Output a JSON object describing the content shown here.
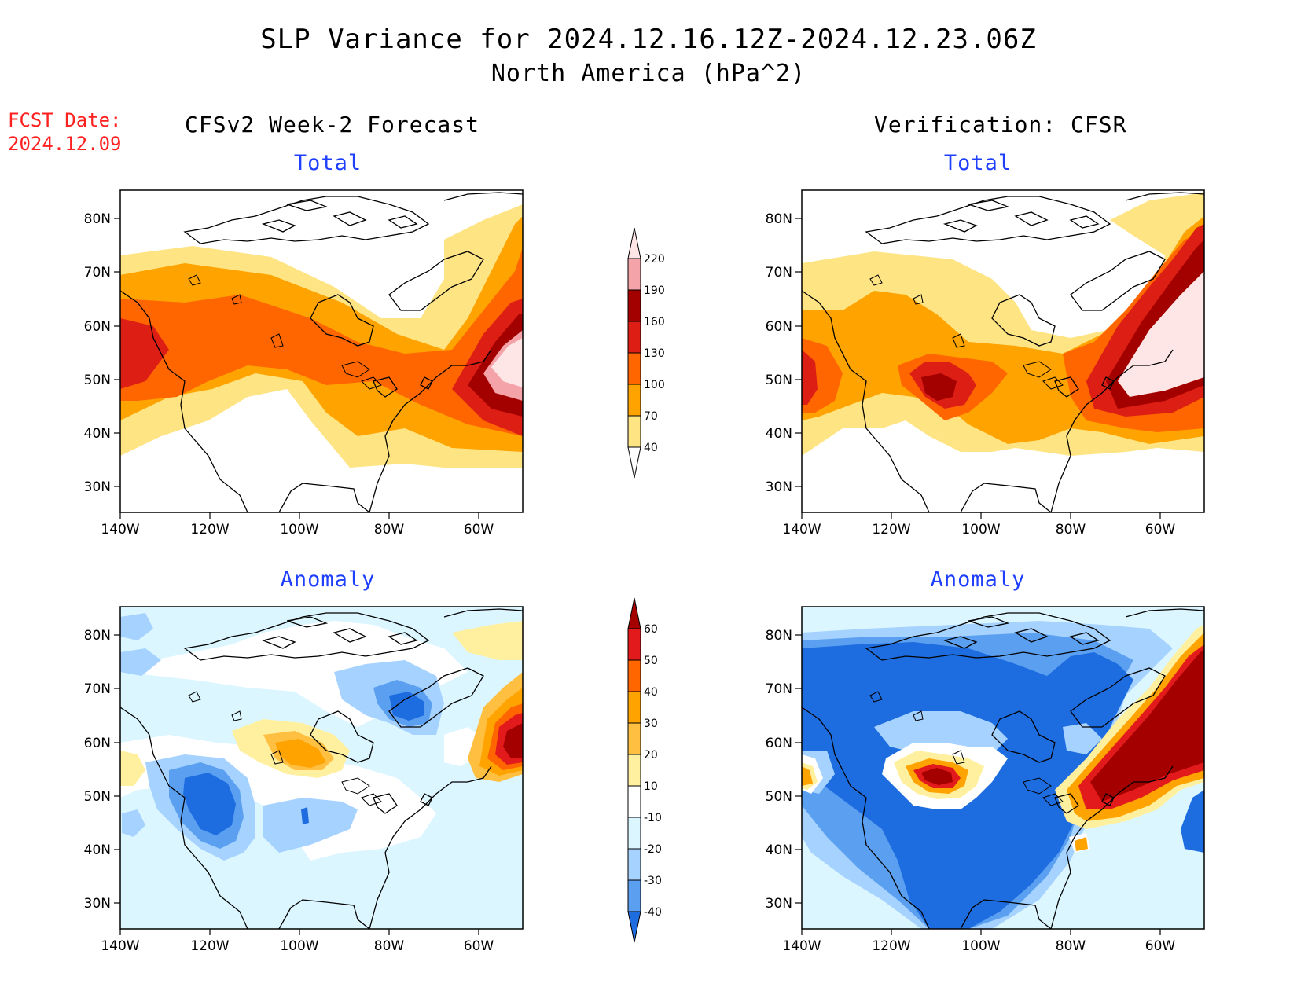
{
  "header": {
    "title": "SLP Variance for 2024.12.16.12Z-2024.12.23.06Z",
    "subtitle": "North America (hPa^2)"
  },
  "fcst": {
    "label": "FCST Date:",
    "date": "2024.12.09"
  },
  "columns": {
    "left": "CFSv2 Week-2 Forecast",
    "right": "Verification: CFSR"
  },
  "panels": {
    "fc_total": {
      "title": "Total"
    },
    "vf_total": {
      "title": "Total"
    },
    "fc_anom": {
      "title": "Anomaly"
    },
    "vf_anom": {
      "title": "Anomaly"
    }
  },
  "axes": {
    "lat_labels": [
      "80N",
      "70N",
      "60N",
      "50N",
      "40N",
      "30N"
    ],
    "lon_labels": [
      "140W",
      "120W",
      "100W",
      "80W",
      "60W"
    ]
  },
  "colorbars": {
    "total": {
      "labels": [
        "220",
        "190",
        "160",
        "130",
        "100",
        "70",
        "40"
      ],
      "colors": [
        "#ffe6e6",
        "#f4a3a8",
        "#a30000",
        "#dc1e14",
        "#ff6600",
        "#ffa300",
        "#fee483",
        "#ffffff"
      ]
    },
    "anomaly": {
      "labels": [
        "60",
        "50",
        "40",
        "30",
        "20",
        "10",
        "-10",
        "-20",
        "-30",
        "-40"
      ],
      "colors": [
        "#a50000",
        "#e31a1c",
        "#ff6600",
        "#ffa300",
        "#ffbf40",
        "#fff0a0",
        "#ffffff",
        "#dcf6ff",
        "#a6d2ff",
        "#5ba0f0",
        "#1e6de0",
        "#0a5ad8"
      ]
    }
  },
  "palette": {
    "white": "#ffffff",
    "yellow": "#fee483",
    "orange": "#ffa300",
    "dark_orange": "#ff6600",
    "red": "#dc1e14",
    "dark_red": "#a30000",
    "pink": "#f4a3a8",
    "light_pink": "#ffe6e6",
    "pale_blue": "#dcf6ff",
    "light_blue": "#a6d2ff",
    "mid_blue": "#5ba0f0",
    "blue": "#1e6de0",
    "light_yellow": "#fff0a0",
    "light_orange": "#ffbf40"
  }
}
